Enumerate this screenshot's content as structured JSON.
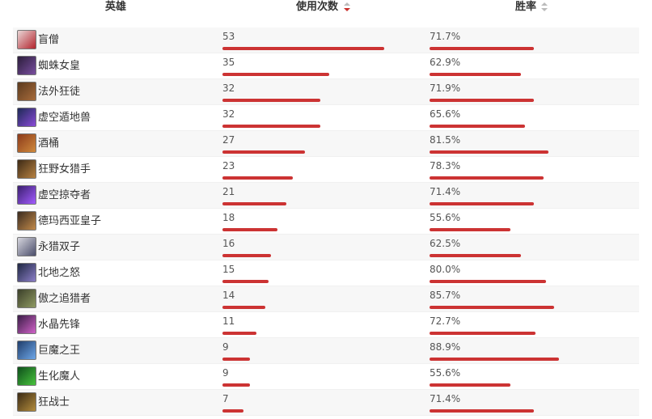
{
  "header": {
    "hero": "英雄",
    "uses": "使用次数",
    "winrate": "胜率"
  },
  "colors": {
    "bar": "#cc3333",
    "sort_active": "#c9302c",
    "sort_inactive": "#bbbbbb"
  },
  "max_uses": 53,
  "rows": [
    {
      "name": "盲僧",
      "uses": 53,
      "winrate": "71.7%",
      "avatar": [
        "#e9d6d6",
        "#b3242d"
      ]
    },
    {
      "name": "蜘蛛女皇",
      "uses": 35,
      "winrate": "62.9%",
      "avatar": [
        "#2b1d3a",
        "#7a4fa0"
      ]
    },
    {
      "name": "法外狂徒",
      "uses": 32,
      "winrate": "71.9%",
      "avatar": [
        "#5b3a1e",
        "#a76b3b"
      ]
    },
    {
      "name": "虚空遁地兽",
      "uses": 32,
      "winrate": "65.6%",
      "avatar": [
        "#1d2a55",
        "#8a4bd8"
      ]
    },
    {
      "name": "酒桶",
      "uses": 27,
      "winrate": "81.5%",
      "avatar": [
        "#8c3b1b",
        "#d08a3c"
      ]
    },
    {
      "name": "狂野女猎手",
      "uses": 23,
      "winrate": "78.3%",
      "avatar": [
        "#3d2a16",
        "#b78242"
      ]
    },
    {
      "name": "虚空掠夺者",
      "uses": 21,
      "winrate": "71.4%",
      "avatar": [
        "#3a1f6e",
        "#a35cff"
      ]
    },
    {
      "name": "德玛西亚皇子",
      "uses": 18,
      "winrate": "55.6%",
      "avatar": [
        "#3a2b1f",
        "#c28a4a"
      ]
    },
    {
      "name": "永猎双子",
      "uses": 16,
      "winrate": "62.5%",
      "avatar": [
        "#d6d6de",
        "#4a4d6a"
      ]
    },
    {
      "name": "北地之怒",
      "uses": 15,
      "winrate": "80.0%",
      "avatar": [
        "#1e2742",
        "#8c7fc8"
      ]
    },
    {
      "name": "傲之追猎者",
      "uses": 14,
      "winrate": "85.7%",
      "avatar": [
        "#3b3f2a",
        "#8f9a62"
      ]
    },
    {
      "name": "水晶先锋",
      "uses": 11,
      "winrate": "72.7%",
      "avatar": [
        "#3a1d46",
        "#d062c8"
      ]
    },
    {
      "name": "巨魔之王",
      "uses": 9,
      "winrate": "88.9%",
      "avatar": [
        "#1f3d6b",
        "#6ea7e8"
      ]
    },
    {
      "name": "生化魔人",
      "uses": 9,
      "winrate": "55.6%",
      "avatar": [
        "#0e4e1b",
        "#48c33d"
      ]
    },
    {
      "name": "狂战士",
      "uses": 7,
      "winrate": "71.4%",
      "avatar": [
        "#3a2a14",
        "#b38c3c"
      ]
    }
  ]
}
